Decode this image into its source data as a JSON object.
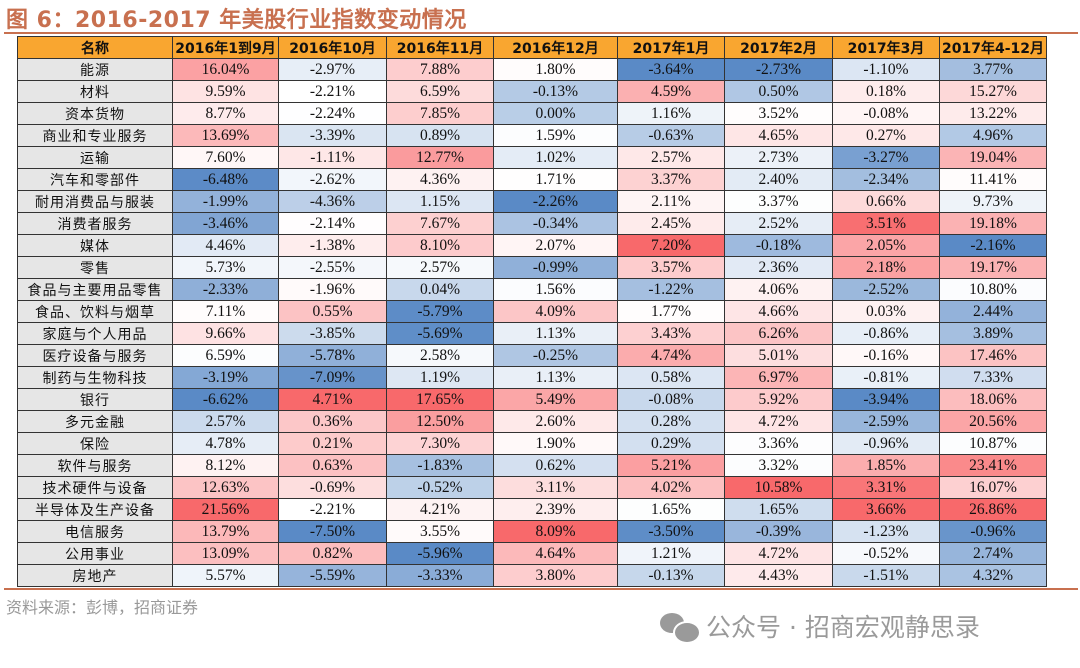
{
  "title": "图 6：2016-2017 年美股行业指数变动情况",
  "source": "资料来源：彭博，招商证券",
  "watermark": "公众号 · 招商宏观静思录",
  "colors": {
    "title": "#c8704f",
    "header_bg": "#f9a630",
    "name_bg": "#e6e6e6",
    "scale_min": "#5a8ac6",
    "scale_mid": "#ffffff",
    "scale_max": "#f8696b"
  },
  "chart_data": {
    "type": "table",
    "columns": [
      "名称",
      "2016年1到9月",
      "2016年10月",
      "2016年11月",
      "2016年12月",
      "2017年1月",
      "2017年2月",
      "2017年3月",
      "2017年4-12月"
    ],
    "rows": [
      {
        "name": "能源",
        "values": [
          "16.04%",
          "-2.97%",
          "7.88%",
          "1.80%",
          "-3.64%",
          "-2.73%",
          "-1.10%",
          "3.77%"
        ]
      },
      {
        "name": "材料",
        "values": [
          "9.59%",
          "-2.21%",
          "6.59%",
          "-0.13%",
          "4.59%",
          "0.50%",
          "0.18%",
          "15.27%"
        ]
      },
      {
        "name": "资本货物",
        "values": [
          "8.77%",
          "-2.24%",
          "7.85%",
          "0.00%",
          "1.16%",
          "3.52%",
          "-0.08%",
          "13.22%"
        ]
      },
      {
        "name": "商业和专业服务",
        "values": [
          "13.69%",
          "-3.39%",
          "0.89%",
          "1.59%",
          "-0.63%",
          "4.65%",
          "0.27%",
          "4.96%"
        ]
      },
      {
        "name": "运输",
        "values": [
          "7.60%",
          "-1.11%",
          "12.77%",
          "1.02%",
          "2.57%",
          "2.73%",
          "-3.27%",
          "19.04%"
        ]
      },
      {
        "name": "汽车和零部件",
        "values": [
          "-6.48%",
          "-2.62%",
          "4.36%",
          "1.71%",
          "3.37%",
          "2.40%",
          "-2.34%",
          "11.41%"
        ]
      },
      {
        "name": "耐用消费品与服装",
        "values": [
          "-1.99%",
          "-4.36%",
          "1.15%",
          "-2.26%",
          "2.11%",
          "3.37%",
          "0.66%",
          "9.73%"
        ]
      },
      {
        "name": "消费者服务",
        "values": [
          "-3.46%",
          "-2.14%",
          "7.67%",
          "-0.34%",
          "2.45%",
          "2.52%",
          "3.51%",
          "19.18%"
        ]
      },
      {
        "name": "媒体",
        "values": [
          "4.46%",
          "-1.38%",
          "8.10%",
          "2.07%",
          "7.20%",
          "-0.18%",
          "2.05%",
          "-2.16%"
        ]
      },
      {
        "name": "零售",
        "values": [
          "5.73%",
          "-2.55%",
          "2.57%",
          "-0.99%",
          "3.57%",
          "2.36%",
          "2.18%",
          "19.17%"
        ]
      },
      {
        "name": "食品与主要用品零售",
        "values": [
          "-2.33%",
          "-1.96%",
          "0.04%",
          "1.56%",
          "-1.22%",
          "4.06%",
          "-2.52%",
          "10.80%"
        ]
      },
      {
        "name": "食品、饮料与烟草",
        "values": [
          "7.11%",
          "0.55%",
          "-5.79%",
          "4.09%",
          "1.77%",
          "4.66%",
          "0.03%",
          "2.44%"
        ]
      },
      {
        "name": "家庭与个人用品",
        "values": [
          "9.66%",
          "-3.85%",
          "-5.69%",
          "1.13%",
          "3.43%",
          "6.26%",
          "-0.86%",
          "3.89%"
        ]
      },
      {
        "name": "医疗设备与服务",
        "values": [
          "6.59%",
          "-5.78%",
          "2.58%",
          "-0.25%",
          "4.74%",
          "5.01%",
          "-0.16%",
          "17.46%"
        ]
      },
      {
        "name": "制药与生物科技",
        "values": [
          "-3.19%",
          "-7.09%",
          "1.19%",
          "1.13%",
          "0.58%",
          "6.97%",
          "-0.81%",
          "7.33%"
        ]
      },
      {
        "name": "银行",
        "values": [
          "-6.62%",
          "4.71%",
          "17.65%",
          "5.49%",
          "-0.08%",
          "5.92%",
          "-3.94%",
          "18.06%"
        ]
      },
      {
        "name": "多元金融",
        "values": [
          "2.57%",
          "0.36%",
          "12.50%",
          "2.60%",
          "0.28%",
          "4.72%",
          "-2.59%",
          "20.56%"
        ]
      },
      {
        "name": "保险",
        "values": [
          "4.78%",
          "0.21%",
          "7.30%",
          "1.90%",
          "0.29%",
          "3.36%",
          "-0.96%",
          "10.87%"
        ]
      },
      {
        "name": "软件与服务",
        "values": [
          "8.12%",
          "0.63%",
          "-1.83%",
          "0.62%",
          "5.21%",
          "3.32%",
          "1.85%",
          "23.41%"
        ]
      },
      {
        "name": "技术硬件与设备",
        "values": [
          "12.63%",
          "-0.69%",
          "-0.52%",
          "3.11%",
          "4.02%",
          "10.58%",
          "3.31%",
          "16.07%"
        ]
      },
      {
        "name": "半导体及生产设备",
        "values": [
          "21.56%",
          "-2.21%",
          "4.21%",
          "2.39%",
          "1.65%",
          "1.65%",
          "3.66%",
          "26.86%"
        ]
      },
      {
        "name": "电信服务",
        "values": [
          "13.79%",
          "-7.50%",
          "3.55%",
          "8.09%",
          "-3.50%",
          "-0.39%",
          "-1.23%",
          "-0.96%"
        ]
      },
      {
        "name": "公用事业",
        "values": [
          "13.09%",
          "0.82%",
          "-5.96%",
          "4.64%",
          "1.21%",
          "4.72%",
          "-0.52%",
          "2.74%"
        ]
      },
      {
        "name": "房地产",
        "values": [
          "5.57%",
          "-5.59%",
          "-3.33%",
          "3.80%",
          "-0.13%",
          "4.43%",
          "-1.51%",
          "4.32%"
        ]
      }
    ]
  }
}
